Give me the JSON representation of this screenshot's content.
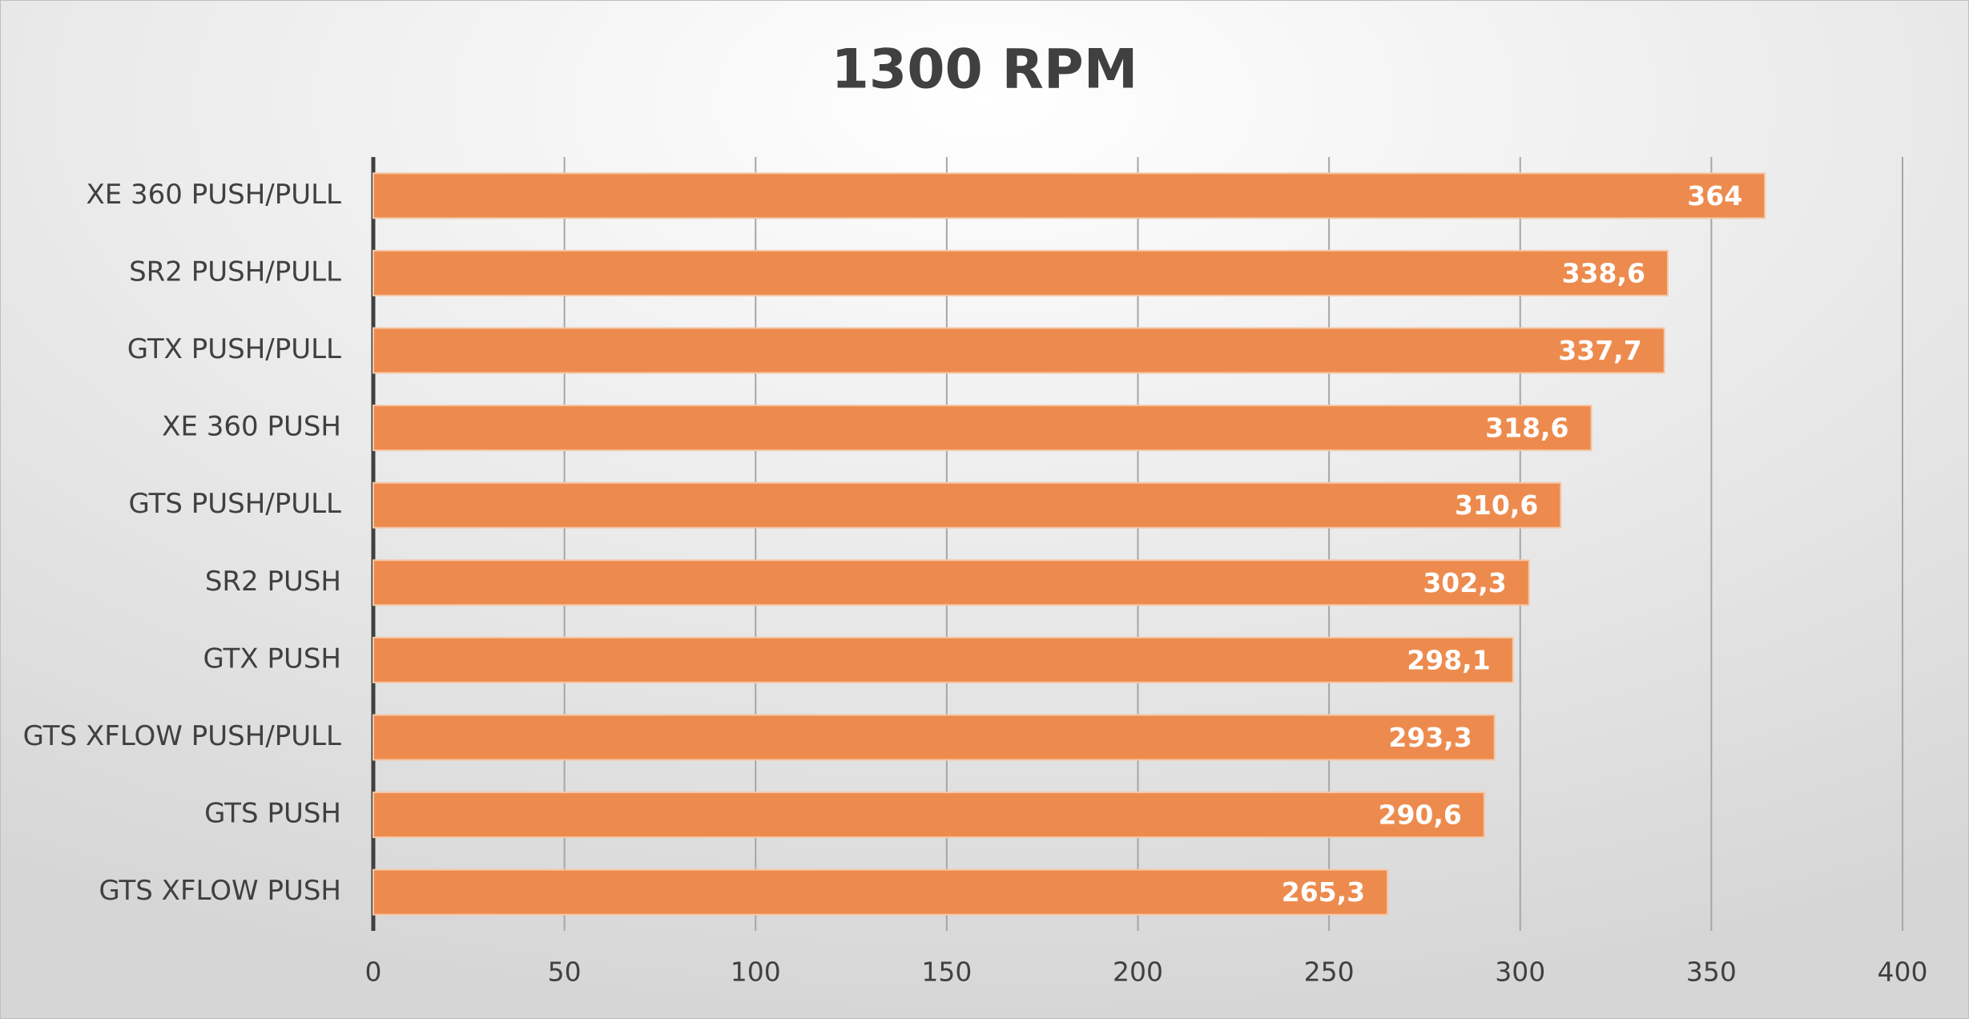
{
  "chart_data": {
    "type": "bar",
    "orientation": "horizontal",
    "title": "1300 RPM",
    "categories": [
      "XE 360 PUSH/PULL",
      "SR2 PUSH/PULL",
      "GTX PUSH/PULL",
      "XE 360 PUSH",
      "GTS PUSH/PULL",
      "SR2 PUSH",
      "GTX PUSH",
      "GTS XFLOW PUSH/PULL",
      "GTS PUSH",
      "GTS XFLOW PUSH"
    ],
    "values": [
      364,
      338.6,
      337.7,
      318.6,
      310.6,
      302.3,
      298.1,
      293.3,
      290.6,
      265.3
    ],
    "value_labels": [
      "364",
      "338,6",
      "337,7",
      "318,6",
      "310,6",
      "302,3",
      "298,1",
      "293,3",
      "290,6",
      "265,3"
    ],
    "color": "#ed8b4e",
    "xlim": [
      0,
      400
    ],
    "xticks": [
      0,
      50,
      100,
      150,
      200,
      250,
      300,
      350,
      400
    ],
    "grid": true
  }
}
